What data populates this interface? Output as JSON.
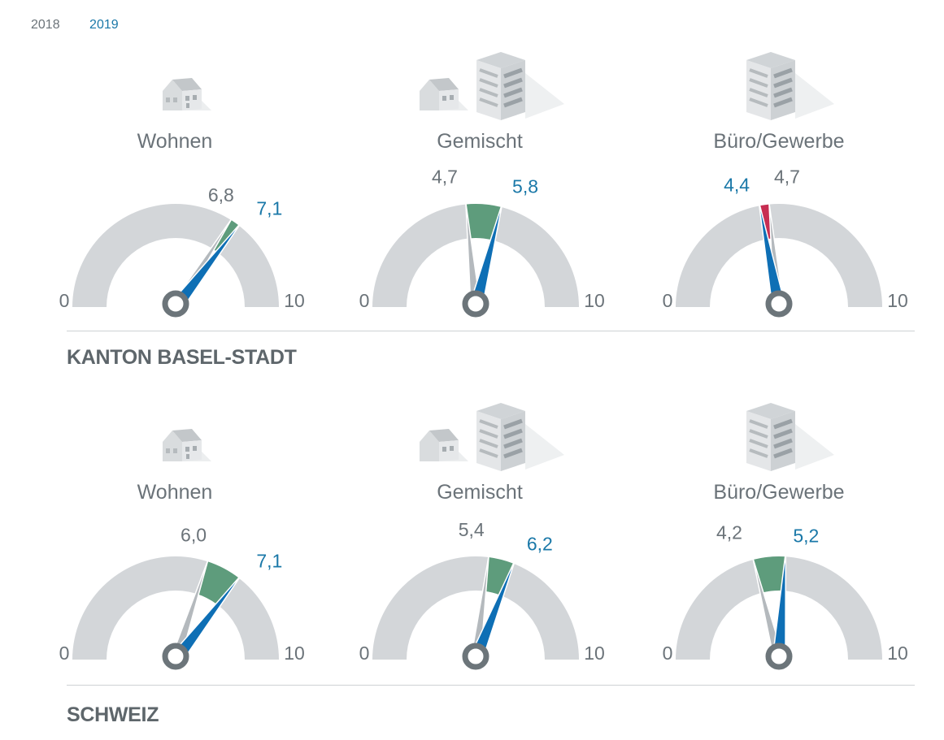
{
  "legend": {
    "year_prev": "2018",
    "year_curr": "2019"
  },
  "colors": {
    "prev": "#6b7379",
    "curr": "#1a78a8",
    "needle_prev": "#b4b9bd",
    "needle_curr": "#0e6fb5",
    "arc_bg": "#d3d6d9",
    "increase": "#5e9c7c",
    "decrease": "#c72d52",
    "hub": "#6c757a"
  },
  "chart_data": [
    {
      "type": "gauge",
      "region": "KANTON BASEL-STADT",
      "scale_min": "0",
      "scale_max": "10",
      "range": [
        0,
        10
      ],
      "gauges": [
        {
          "category": "Wohnen",
          "icon": "house-icon",
          "value_2018": 6.8,
          "value_2019": 7.1,
          "label_2018": "6,8",
          "label_2019": "7,1"
        },
        {
          "category": "Gemischt",
          "icon": "house-and-office-icon",
          "value_2018": 4.7,
          "value_2019": 5.8,
          "label_2018": "4,7",
          "label_2019": "5,8"
        },
        {
          "category": "Büro/Gewerbe",
          "icon": "office-building-icon",
          "value_2018": 4.7,
          "value_2019": 4.4,
          "label_2018": "4,7",
          "label_2019": "4,4"
        }
      ]
    },
    {
      "type": "gauge",
      "region": "SCHWEIZ",
      "scale_min": "0",
      "scale_max": "10",
      "range": [
        0,
        10
      ],
      "gauges": [
        {
          "category": "Wohnen",
          "icon": "house-icon",
          "value_2018": 6.0,
          "value_2019": 7.1,
          "label_2018": "6,0",
          "label_2019": "7,1"
        },
        {
          "category": "Gemischt",
          "icon": "house-and-office-icon",
          "value_2018": 5.4,
          "value_2019": 6.2,
          "label_2018": "5,4",
          "label_2019": "6,2"
        },
        {
          "category": "Büro/Gewerbe",
          "icon": "office-building-icon",
          "value_2018": 4.2,
          "value_2019": 5.2,
          "label_2018": "4,2",
          "label_2019": "5,2"
        }
      ]
    }
  ]
}
